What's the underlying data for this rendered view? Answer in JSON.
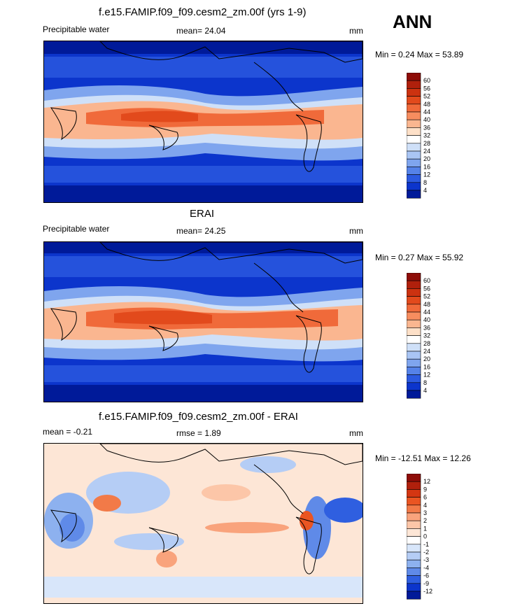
{
  "season": "ANN",
  "panels": [
    {
      "title": "f.e15.FAMIP.f09_f09.cesm2_zm.00f (yrs 1-9)",
      "left_label": "Precipitable water",
      "mean_text": "mean=  24.04",
      "units": "mm",
      "minmax": "Min =   0.24 Max =  53.89",
      "colorbar": {
        "ticks": [
          "60",
          "56",
          "52",
          "48",
          "44",
          "40",
          "36",
          "32",
          "28",
          "24",
          "20",
          "16",
          "12",
          "8",
          "4"
        ],
        "colors": [
          "#8e0d08",
          "#b0200c",
          "#cc3210",
          "#e24a1c",
          "#f06a3a",
          "#f78d5f",
          "#fab690",
          "#fde0c8",
          "#ffffff",
          "#cfe0f8",
          "#a9c5f4",
          "#7fa5ee",
          "#5582e8",
          "#2c5ae0",
          "#0c35cc",
          "#001a99"
        ]
      }
    },
    {
      "title": "ERAI",
      "left_label": "Precipitable water",
      "mean_text": "mean=  24.25",
      "units": "mm",
      "minmax": "Min =   0.27 Max =  55.92",
      "colorbar": {
        "ticks": [
          "60",
          "56",
          "52",
          "48",
          "44",
          "40",
          "36",
          "32",
          "28",
          "24",
          "20",
          "16",
          "12",
          "8",
          "4"
        ],
        "colors": [
          "#8e0d08",
          "#b0200c",
          "#cc3210",
          "#e24a1c",
          "#f06a3a",
          "#f78d5f",
          "#fab690",
          "#fde0c8",
          "#ffffff",
          "#cfe0f8",
          "#a9c5f4",
          "#7fa5ee",
          "#5582e8",
          "#2c5ae0",
          "#0c35cc",
          "#001a99"
        ]
      }
    },
    {
      "title": "f.e15.FAMIP.f09_f09.cesm2_zm.00f - ERAI",
      "left_label": "mean =  -0.21",
      "mean_text": "rmse =   1.89",
      "units": "mm",
      "minmax": "Min = -12.51 Max =  12.26",
      "colorbar": {
        "ticks": [
          "12",
          "9",
          "6",
          "4",
          "3",
          "2",
          "1",
          "0",
          "-1",
          "-2",
          "-3",
          "-4",
          "-6",
          "-9",
          "-12"
        ],
        "colors": [
          "#8e0d08",
          "#b0200c",
          "#d43612",
          "#ea5522",
          "#f27a48",
          "#f9a37c",
          "#fcc6a8",
          "#fde6d6",
          "#ffffff",
          "#d8e6fa",
          "#b5cdf5",
          "#8db1ef",
          "#5f8ae8",
          "#2f5fe0",
          "#0c35cc",
          "#001a99"
        ]
      }
    }
  ]
}
